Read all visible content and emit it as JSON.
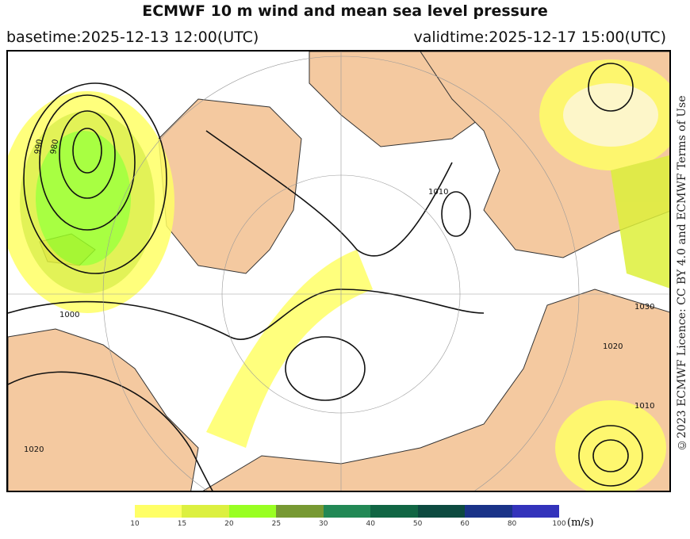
{
  "title": "ECMWF 10 m wind and mean sea level pressure",
  "basetime": "basetime:2025-12-13 12:00(UTC)",
  "validtime": "validtime:2025-12-17 15:00(UTC)",
  "licence": "©2023 ECMWF Licence: CC BY 4.0 and ECMWF Terms of Use",
  "colors": {
    "ocean": "#ffffff",
    "land": "#f4c9a0",
    "wind_10": "#ffff66",
    "wind_15": "#ddf03a",
    "wind_20": "#99ff22"
  },
  "isobar_labels": [
    "980",
    "990",
    "1000",
    "1010",
    "1020",
    "1030"
  ],
  "colorbar": {
    "unit": "(m/s)",
    "ticks": [
      "10",
      "15",
      "20",
      "25",
      "30",
      "40",
      "50",
      "60",
      "80",
      "100"
    ],
    "colors": [
      "#ffff66",
      "#dcf040",
      "#99ff22",
      "#779933",
      "#228855",
      "#116644",
      "#0d4a40",
      "#1a3388",
      "#3333bb"
    ]
  }
}
